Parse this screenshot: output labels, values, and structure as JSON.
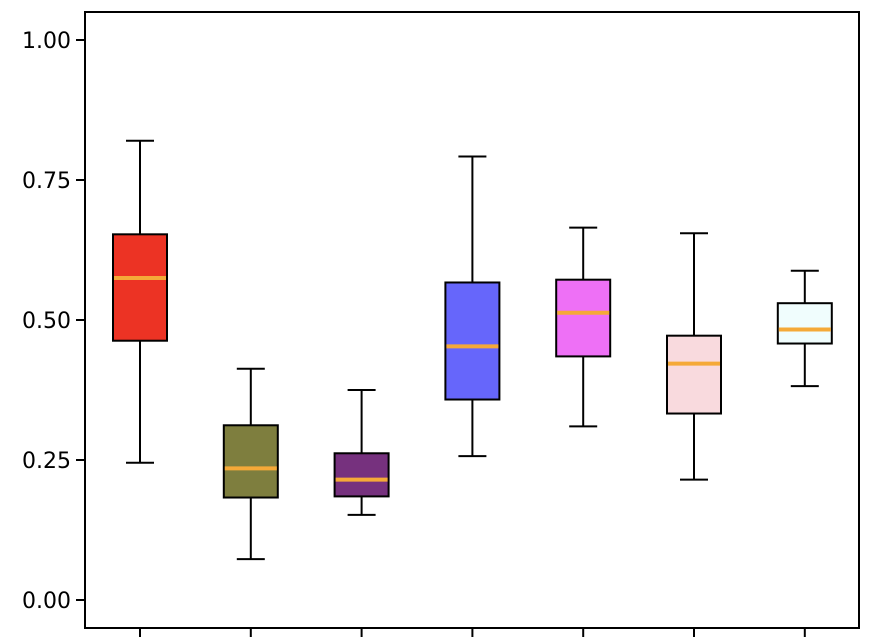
{
  "chart_data": {
    "type": "box",
    "title": "",
    "xlabel": "",
    "ylabel": "",
    "ylim": [
      -0.05,
      1.05
    ],
    "yticks": [
      0.0,
      0.25,
      0.5,
      0.75,
      1.0
    ],
    "ytick_labels": [
      "0.00",
      "0.25",
      "0.50",
      "0.75",
      "1.00"
    ],
    "xtick_labels": [
      "",
      "",
      "",
      "",
      "",
      "",
      ""
    ],
    "grid": false,
    "legend": "none",
    "median_color": "#f5a938",
    "boxes": [
      {
        "whisker_low": 0.245,
        "q1": 0.463,
        "median": 0.575,
        "q3": 0.653,
        "whisker_high": 0.82,
        "color": "#ec3324"
      },
      {
        "whisker_low": 0.073,
        "q1": 0.183,
        "median": 0.235,
        "q3": 0.312,
        "whisker_high": 0.413,
        "color": "#7e7e3e"
      },
      {
        "whisker_low": 0.152,
        "q1": 0.185,
        "median": 0.215,
        "q3": 0.262,
        "whisker_high": 0.375,
        "color": "#76317e"
      },
      {
        "whisker_low": 0.257,
        "q1": 0.358,
        "median": 0.453,
        "q3": 0.567,
        "whisker_high": 0.792,
        "color": "#6666fb"
      },
      {
        "whisker_low": 0.31,
        "q1": 0.435,
        "median": 0.513,
        "q3": 0.572,
        "whisker_high": 0.665,
        "color": "#ee70f6"
      },
      {
        "whisker_low": 0.215,
        "q1": 0.333,
        "median": 0.422,
        "q3": 0.472,
        "whisker_high": 0.655,
        "color": "#f9dade"
      },
      {
        "whisker_low": 0.382,
        "q1": 0.458,
        "median": 0.483,
        "q3": 0.53,
        "whisker_high": 0.588,
        "color": "#f0fdfd"
      }
    ]
  }
}
